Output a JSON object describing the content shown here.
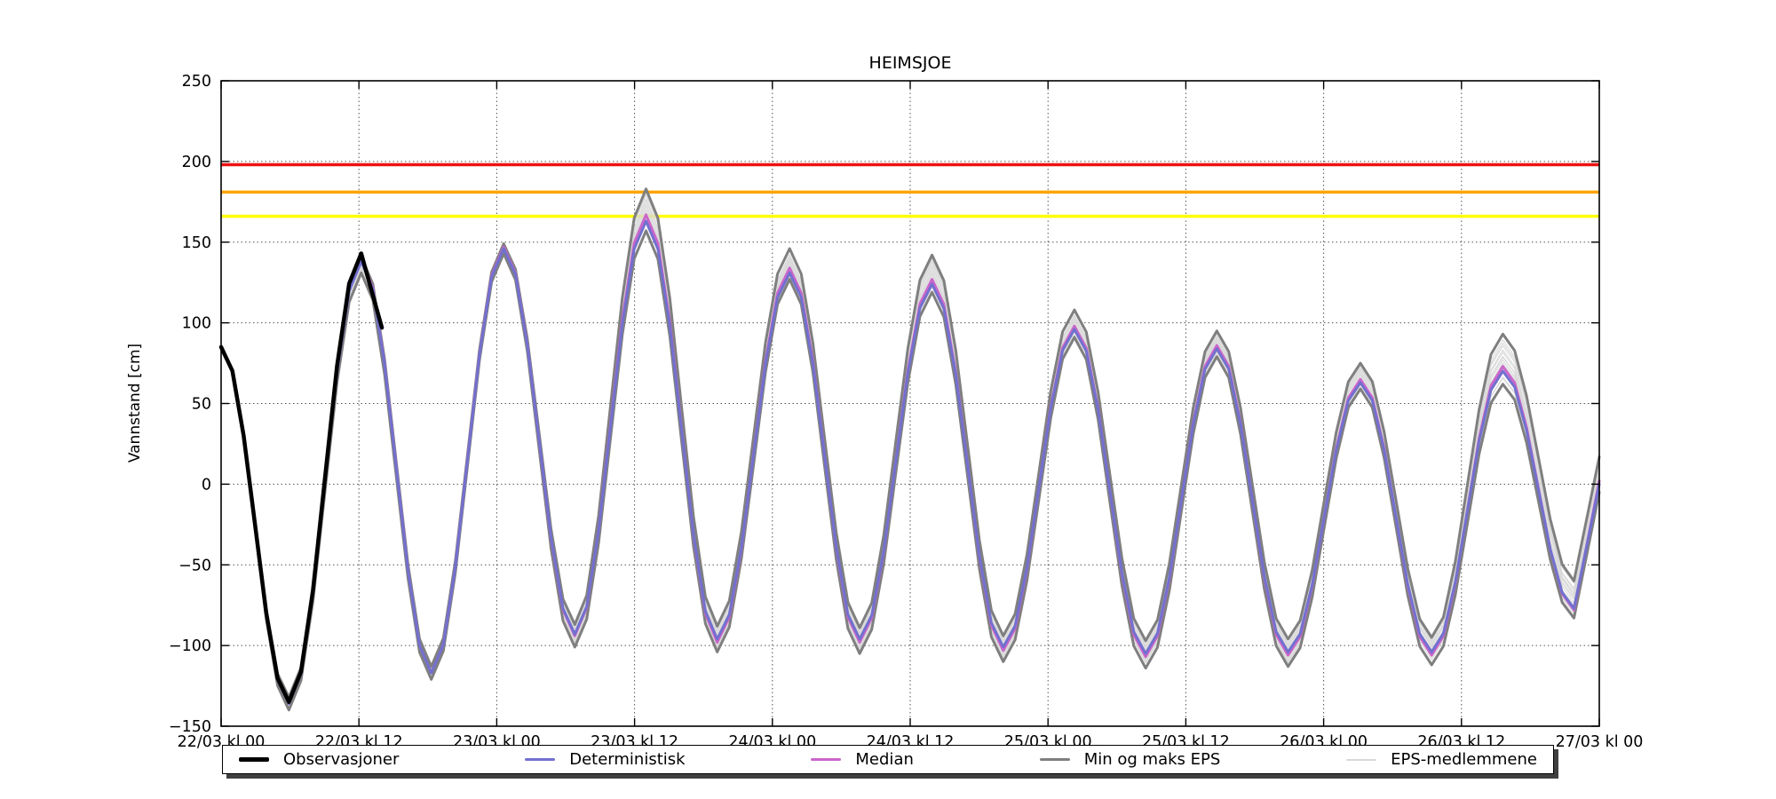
{
  "chart_data": {
    "type": "line",
    "title": "HEIMSJOE",
    "ylabel": "Vannstand [cm]",
    "ylim": [
      -150,
      250
    ],
    "ytick_step": 50,
    "x_hours_range": [
      0,
      120
    ],
    "xtick_interval_hours": 12,
    "xtick_labels": [
      "22/03 kl 00",
      "22/03 kl 12",
      "23/03 kl 00",
      "23/03 kl 12",
      "24/03 kl 00",
      "24/03 kl 12",
      "25/03 kl 00",
      "25/03 kl 12",
      "26/03 kl 00",
      "26/03 kl 12",
      "27/03 kl 00"
    ],
    "grid": "dotted",
    "legend_position": "bottom",
    "thresholds": [
      {
        "name": "red-alert-level",
        "value": 198,
        "color": "#ee1111"
      },
      {
        "name": "orange-alert-level",
        "value": 181,
        "color": "#ffa500"
      },
      {
        "name": "yellow-alert-level",
        "value": 166,
        "color": "#ffff00"
      }
    ],
    "anchor_t_hours": [
      0,
      5.9,
      12.2,
      18.3,
      24.6,
      30.8,
      37.0,
      43.2,
      49.5,
      55.6,
      61.9,
      68.1,
      74.3,
      80.5,
      86.7,
      92.9,
      99.2,
      105.4,
      111.6,
      117.8,
      120
    ],
    "series": {
      "observations": {
        "label": "Observasjoner",
        "color": "#000000",
        "width": 4.5,
        "t_hours": [
          0,
          5.9,
          12.2,
          14.0
        ],
        "values": [
          85,
          -135,
          143,
          97
        ]
      },
      "deterministic": {
        "label": "Deterministisk",
        "color": "#7270cf",
        "width": 3,
        "values": [
          85,
          -136,
          138,
          -117,
          146,
          -93,
          163,
          -96,
          131,
          -96,
          124,
          -101,
          96,
          -105,
          84,
          -104,
          63,
          -104,
          70,
          -77,
          0
        ]
      },
      "median": {
        "label": "Median",
        "color": "#cb65cb",
        "width": 3,
        "values": [
          85,
          -136,
          139,
          -117,
          147,
          -94,
          167,
          -98,
          134,
          -98,
          127,
          -103,
          98,
          -107,
          86,
          -106,
          65,
          -106,
          73,
          -78,
          2
        ]
      },
      "eps_min": {
        "label": "Min og maks EPS",
        "color": "#7f7f7f",
        "width": 3,
        "values": [
          85,
          -140,
          131,
          -121,
          143,
          -101,
          157,
          -104,
          127,
          -105,
          119,
          -110,
          91,
          -114,
          79,
          -113,
          59,
          -112,
          62,
          -83,
          -5
        ]
      },
      "eps_max": {
        "label": "Min og maks EPS",
        "color": "#7f7f7f",
        "width": 3,
        "values": [
          85,
          -132,
          141,
          -113,
          149,
          -87,
          183,
          -88,
          146,
          -89,
          142,
          -94,
          108,
          -97,
          95,
          -96,
          75,
          -95,
          93,
          -60,
          17
        ]
      },
      "eps_members": {
        "label": "EPS-medlemmene",
        "color": "#d8d8d8",
        "width": 1.2,
        "count": 18
      }
    },
    "legend": {
      "entries": [
        {
          "label": "Observasjoner",
          "color": "#000000",
          "lw": 5
        },
        {
          "label": "Deterministisk",
          "color": "#7270cf",
          "lw": 3
        },
        {
          "label": "Median",
          "color": "#cb65cb",
          "lw": 3
        },
        {
          "label": "Min og maks EPS",
          "color": "#7f7f7f",
          "lw": 3
        },
        {
          "label": "EPS-medlemmene",
          "color": "#d8d8d8",
          "lw": 2
        }
      ]
    }
  }
}
